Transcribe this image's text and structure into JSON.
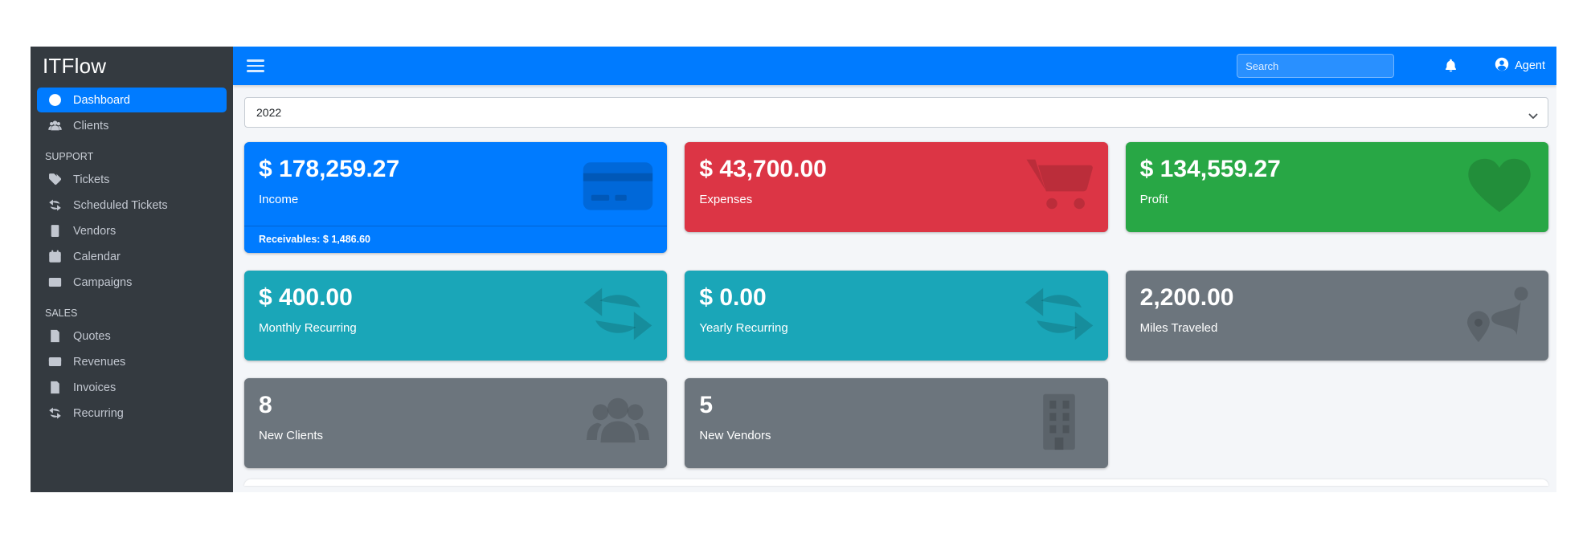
{
  "brand": {
    "name": "ITFlow"
  },
  "navbar": {
    "search_placeholder": "Search",
    "user_label": "Agent"
  },
  "filters": {
    "year_selected": "2022"
  },
  "sidebar": {
    "sections": [
      {
        "header": "",
        "items": [
          {
            "label": "Dashboard",
            "icon": "gauge",
            "active": true
          },
          {
            "label": "Clients",
            "icon": "users",
            "active": false
          }
        ]
      },
      {
        "header": "SUPPORT",
        "items": [
          {
            "label": "Tickets",
            "icon": "tags",
            "active": false
          },
          {
            "label": "Scheduled Tickets",
            "icon": "sync",
            "active": false
          },
          {
            "label": "Vendors",
            "icon": "building",
            "active": false
          },
          {
            "label": "Calendar",
            "icon": "calendar",
            "active": false
          },
          {
            "label": "Campaigns",
            "icon": "envelope",
            "active": false
          }
        ]
      },
      {
        "header": "SALES",
        "items": [
          {
            "label": "Quotes",
            "icon": "file",
            "active": false
          },
          {
            "label": "Revenues",
            "icon": "credit",
            "active": false
          },
          {
            "label": "Invoices",
            "icon": "invoice",
            "active": false
          },
          {
            "label": "Recurring",
            "icon": "sync",
            "active": false
          }
        ]
      }
    ]
  },
  "cards": [
    {
      "id": "income",
      "value": "$ 178,259.27",
      "label": "Income",
      "color": "#007bff",
      "icon": "credit-card",
      "footer": "Receivables: $ 1,486.60"
    },
    {
      "id": "expenses",
      "value": "$ 43,700.00",
      "label": "Expenses",
      "color": "#dc3545",
      "icon": "cart",
      "footer": null
    },
    {
      "id": "profit",
      "value": "$ 134,559.27",
      "label": "Profit",
      "color": "#28a745",
      "icon": "heart",
      "footer": null
    },
    {
      "id": "monthly-recurring",
      "value": "$ 400.00",
      "label": "Monthly Recurring",
      "color": "#1aa6b8",
      "icon": "sync",
      "footer": null
    },
    {
      "id": "yearly-recurring",
      "value": "$ 0.00",
      "label": "Yearly Recurring",
      "color": "#1aa6b8",
      "icon": "sync",
      "footer": null
    },
    {
      "id": "miles-traveled",
      "value": "2,200.00",
      "label": "Miles Traveled",
      "color": "#6c757d",
      "icon": "route",
      "footer": null
    },
    {
      "id": "new-clients",
      "value": "8",
      "label": "New Clients",
      "color": "#6c757d",
      "icon": "users",
      "footer": null
    },
    {
      "id": "new-vendors",
      "value": "5",
      "label": "New Vendors",
      "color": "#6c757d",
      "icon": "building",
      "footer": null
    }
  ],
  "colors": {
    "navbar_blue": "#007bff",
    "sidebar_dark": "#343a40",
    "content_bg": "#f4f6f9",
    "primary": "#007bff",
    "danger": "#dc3545",
    "success": "#28a745",
    "teal": "#1aa6b8",
    "secondary": "#6c757d",
    "card_icon_tint": "rgba(0,0,0,0.15)"
  }
}
